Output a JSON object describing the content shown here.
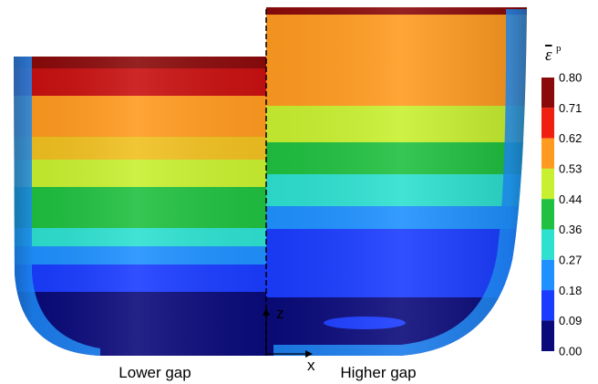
{
  "legend": {
    "symbol": "ε",
    "superscript": "p",
    "ticks": [
      "0.80",
      "0.71",
      "0.62",
      "0.53",
      "0.44",
      "0.36",
      "0.27",
      "0.18",
      "0.09",
      "0.00"
    ]
  },
  "labels": {
    "left": "Lower gap",
    "right": "Higher gap",
    "x_axis": "x",
    "z_axis": "z"
  }
}
